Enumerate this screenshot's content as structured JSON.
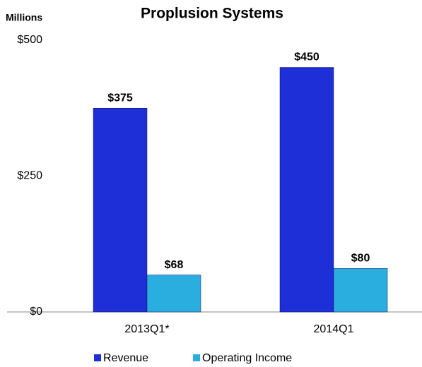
{
  "chart_data": {
    "type": "bar",
    "title": "Proplusion Systems",
    "y_label": "Millions",
    "categories": [
      "2013Q1*",
      "2014Q1"
    ],
    "series": [
      {
        "name": "Revenue",
        "color": "#1f2fd8",
        "values": [
          375,
          450
        ],
        "value_labels": [
          "$375",
          "$450"
        ]
      },
      {
        "name": "Operating Income",
        "color": "#2aaee0",
        "values": [
          68,
          80
        ],
        "value_labels": [
          "$68",
          "$80"
        ]
      }
    ],
    "ylim": [
      0,
      500
    ],
    "yticks": [
      {
        "value": 0,
        "label": "$0"
      },
      {
        "value": 250,
        "label": "$250"
      },
      {
        "value": 500,
        "label": "$500"
      }
    ],
    "grid": false,
    "legend": "bottom"
  }
}
